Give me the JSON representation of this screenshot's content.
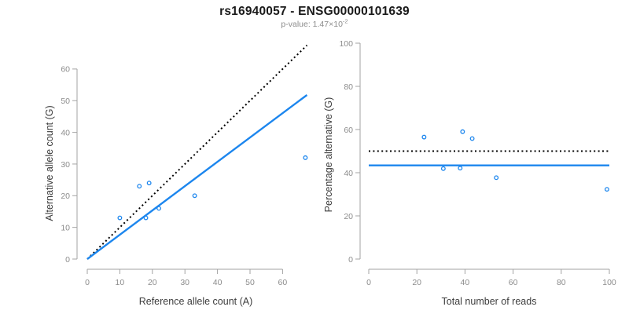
{
  "header": {
    "title": "rs16940057 - ENSG00000101639",
    "subtitle_base": "p-value: 1.47×10",
    "subtitle_exponent": "-2"
  },
  "colors": {
    "accent_blue": "#1c86ee",
    "identity_black": "#000000",
    "axis_line": "#a3a3a3",
    "tick_label": "#8c8c8c",
    "axis_title": "#3c3c3c",
    "title_color": "#1a1a1a",
    "subtitle_color": "#8c8c8c",
    "background": "#ffffff"
  },
  "chart_data": [
    {
      "id": "allele-count-scatter",
      "type": "scatter",
      "xlabel": "Reference allele count (A)",
      "ylabel": "Alternative allele count (G)",
      "xticks": [
        0,
        10,
        20,
        30,
        40,
        50,
        60
      ],
      "yticks": [
        0,
        10,
        20,
        30,
        40,
        50,
        60
      ],
      "xlim": [
        0,
        67.5
      ],
      "ylim": [
        0,
        67.5
      ],
      "grid": false,
      "points": [
        [
          10,
          13
        ],
        [
          16,
          23
        ],
        [
          18,
          13
        ],
        [
          19,
          24
        ],
        [
          22,
          16
        ],
        [
          33,
          20
        ],
        [
          67,
          32
        ]
      ],
      "lines": [
        {
          "name": "identity-line",
          "style": "dotted",
          "color": "#000000",
          "width": 2,
          "x1": 0,
          "y1": 0,
          "x2": 67.5,
          "y2": 67.5
        },
        {
          "name": "fitted-ratio-line",
          "style": "solid",
          "color": "#1c86ee",
          "width": 2.4,
          "x1": 0,
          "y1": 0,
          "x2": 67.5,
          "y2": 51.8
        }
      ]
    },
    {
      "id": "percentage-alternative-scatter",
      "type": "scatter",
      "xlabel": "Total number of reads",
      "ylabel": "Percentage alternative (G)",
      "xticks": [
        0,
        20,
        40,
        60,
        80,
        100
      ],
      "yticks": [
        0,
        20,
        40,
        60,
        80,
        100
      ],
      "xlim": [
        0,
        100
      ],
      "ylim": [
        0,
        100
      ],
      "grid": false,
      "points": [
        [
          23,
          56.5
        ],
        [
          31,
          41.9
        ],
        [
          38,
          42.1
        ],
        [
          39,
          59.0
        ],
        [
          43,
          55.8
        ],
        [
          53,
          37.7
        ],
        [
          99,
          32.3
        ]
      ],
      "lines": [
        {
          "name": "expected-50pct-line",
          "style": "dotted",
          "color": "#000000",
          "width": 2,
          "x1": 0,
          "y1": 50,
          "x2": 100,
          "y2": 50
        },
        {
          "name": "fitted-ratio-line",
          "style": "solid",
          "color": "#1c86ee",
          "width": 2.4,
          "x1": 0,
          "y1": 43.4,
          "x2": 100,
          "y2": 43.4
        }
      ]
    }
  ]
}
